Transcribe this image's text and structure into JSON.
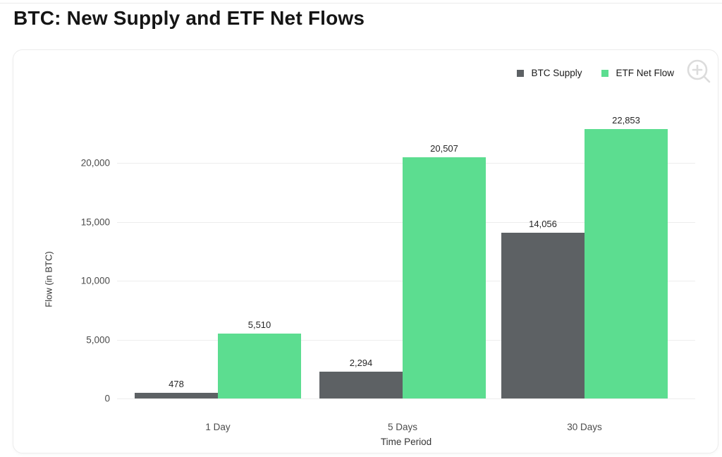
{
  "page": {
    "title": "BTC: New Supply and ETF Net Flows"
  },
  "chart_data": {
    "type": "bar",
    "title": "BTC: New Supply and ETF Net Flows",
    "categories": [
      "1 Day",
      "5 Days",
      "30 Days"
    ],
    "series": [
      {
        "name": "BTC Supply",
        "color": "#5d6164",
        "values": [
          478,
          2294,
          14056
        ]
      },
      {
        "name": "ETF Net Flow",
        "color": "#5cdd90",
        "values": [
          5510,
          20507,
          22853
        ]
      }
    ],
    "xlabel": "Time Period",
    "ylabel": "Flow (in BTC)",
    "ylim": [
      0,
      25000
    ],
    "yticks": [
      0,
      5000,
      10000,
      15000,
      20000
    ],
    "grid": "horizontal",
    "legend_position": "top-right",
    "data_labels": true
  },
  "icons": {
    "zoom_in": "zoom-in-icon"
  }
}
